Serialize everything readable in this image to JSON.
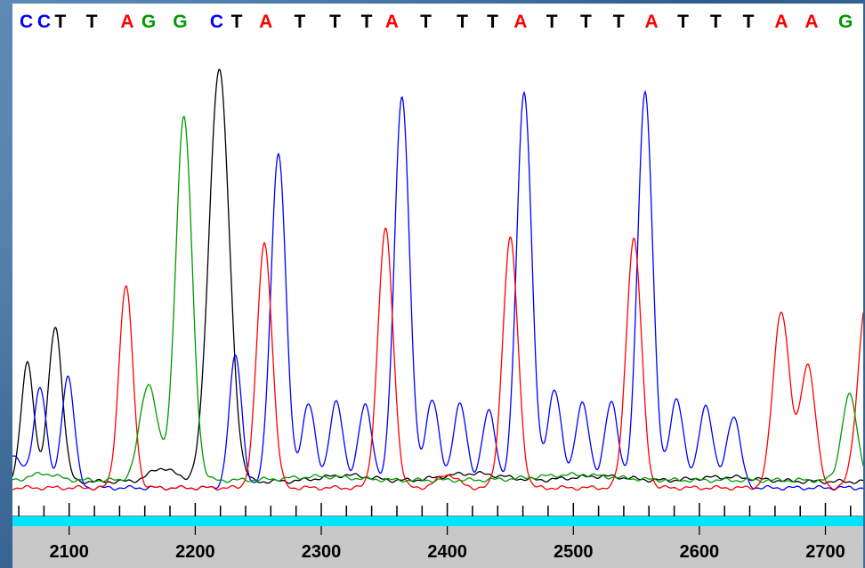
{
  "chart_data": {
    "type": "line",
    "title": "",
    "xlabel": "",
    "ylabel": "",
    "xlim": [
      2055,
      2730
    ],
    "ylim": [
      0,
      1000
    ],
    "grid": false,
    "legend": "none",
    "base_colors": {
      "A": "#ff0000",
      "C": "#0000ff",
      "G": "#009900",
      "T": "#000000"
    },
    "base_calls": [
      {
        "base": "C",
        "position": 2066
      },
      {
        "base": "C",
        "position": 2080
      },
      {
        "base": "T",
        "position": 2093
      },
      {
        "base": "T",
        "position": 2118
      },
      {
        "base": "A",
        "position": 2146
      },
      {
        "base": "G",
        "position": 2163
      },
      {
        "base": "G",
        "position": 2188
      },
      {
        "base": "C",
        "position": 2217
      },
      {
        "base": "T",
        "position": 2233
      },
      {
        "base": "A",
        "position": 2256
      },
      {
        "base": "T",
        "position": 2283
      },
      {
        "base": "T",
        "position": 2311
      },
      {
        "base": "T",
        "position": 2336
      },
      {
        "base": "A",
        "position": 2356
      },
      {
        "base": "T",
        "position": 2383
      },
      {
        "base": "T",
        "position": 2412
      },
      {
        "base": "T",
        "position": 2436
      },
      {
        "base": "A",
        "position": 2458
      },
      {
        "base": "T",
        "position": 2483
      },
      {
        "base": "T",
        "position": 2510
      },
      {
        "base": "T",
        "position": 2536
      },
      {
        "base": "A",
        "position": 2562
      },
      {
        "base": "T",
        "position": 2587
      },
      {
        "base": "T",
        "position": 2613
      },
      {
        "base": "T",
        "position": 2639
      },
      {
        "base": "A",
        "position": 2665
      },
      {
        "base": "A",
        "position": 2689
      },
      {
        "base": "G",
        "position": 2716
      }
    ],
    "x_ticks": [
      2100,
      2200,
      2300,
      2400,
      2500,
      2600,
      2700
    ],
    "series": [
      {
        "name": "T",
        "color": "#000000",
        "baseline": 22,
        "peaks": [
          {
            "x": 2067,
            "y": 265,
            "w": 5
          },
          {
            "x": 2089,
            "y": 345,
            "w": 5.5
          },
          {
            "x": 2174,
            "y": 30,
            "w": 10
          },
          {
            "x": 2219,
            "y": 920,
            "w": 8
          },
          {
            "x": 2320,
            "y": 14,
            "w": 20
          },
          {
            "x": 2420,
            "y": 18,
            "w": 25
          },
          {
            "x": 2520,
            "y": 12,
            "w": 25
          },
          {
            "x": 2620,
            "y": 10,
            "w": 25
          }
        ]
      },
      {
        "name": "C",
        "color": "#0000ff",
        "baseline": 8,
        "peaks": [
          {
            "x": 2055,
            "y": 75,
            "w": 8
          },
          {
            "x": 2077,
            "y": 225,
            "w": 5
          },
          {
            "x": 2099,
            "y": 250,
            "w": 5
          },
          {
            "x": 2232,
            "y": 295,
            "w": 5
          },
          {
            "x": 2266,
            "y": 745,
            "w": 6
          },
          {
            "x": 2290,
            "y": 185,
            "w": 5.5
          },
          {
            "x": 2312,
            "y": 190,
            "w": 5.5
          },
          {
            "x": 2335,
            "y": 185,
            "w": 5.5
          },
          {
            "x": 2364,
            "y": 875,
            "w": 6
          },
          {
            "x": 2388,
            "y": 195,
            "w": 5.5
          },
          {
            "x": 2410,
            "y": 185,
            "w": 5.5
          },
          {
            "x": 2433,
            "y": 170,
            "w": 5.5
          },
          {
            "x": 2461,
            "y": 885,
            "w": 6
          },
          {
            "x": 2485,
            "y": 220,
            "w": 5.5
          },
          {
            "x": 2507,
            "y": 190,
            "w": 5.5
          },
          {
            "x": 2530,
            "y": 190,
            "w": 5.5
          },
          {
            "x": 2557,
            "y": 880,
            "w": 6
          },
          {
            "x": 2582,
            "y": 200,
            "w": 5.5
          },
          {
            "x": 2605,
            "y": 185,
            "w": 5.5
          },
          {
            "x": 2627,
            "y": 160,
            "w": 5.5
          }
        ]
      },
      {
        "name": "A",
        "color": "#ff0000",
        "baseline": 8,
        "peaks": [
          {
            "x": 2145,
            "y": 450,
            "w": 5.5
          },
          {
            "x": 2255,
            "y": 545,
            "w": 6
          },
          {
            "x": 2351,
            "y": 575,
            "w": 6
          },
          {
            "x": 2400,
            "y": 30,
            "w": 8
          },
          {
            "x": 2450,
            "y": 555,
            "w": 6
          },
          {
            "x": 2548,
            "y": 555,
            "w": 6
          },
          {
            "x": 2665,
            "y": 395,
            "w": 6.5
          },
          {
            "x": 2686,
            "y": 275,
            "w": 6
          },
          {
            "x": 2733,
            "y": 430,
            "w": 7
          }
        ]
      },
      {
        "name": "G",
        "color": "#009900",
        "baseline": 25,
        "peaks": [
          {
            "x": 2080,
            "y": 15,
            "w": 10
          },
          {
            "x": 2163,
            "y": 215,
            "w": 7
          },
          {
            "x": 2191,
            "y": 810,
            "w": 6.5
          },
          {
            "x": 2300,
            "y": 8,
            "w": 25
          },
          {
            "x": 2500,
            "y": 12,
            "w": 30
          },
          {
            "x": 2719,
            "y": 190,
            "w": 6
          }
        ]
      }
    ]
  }
}
